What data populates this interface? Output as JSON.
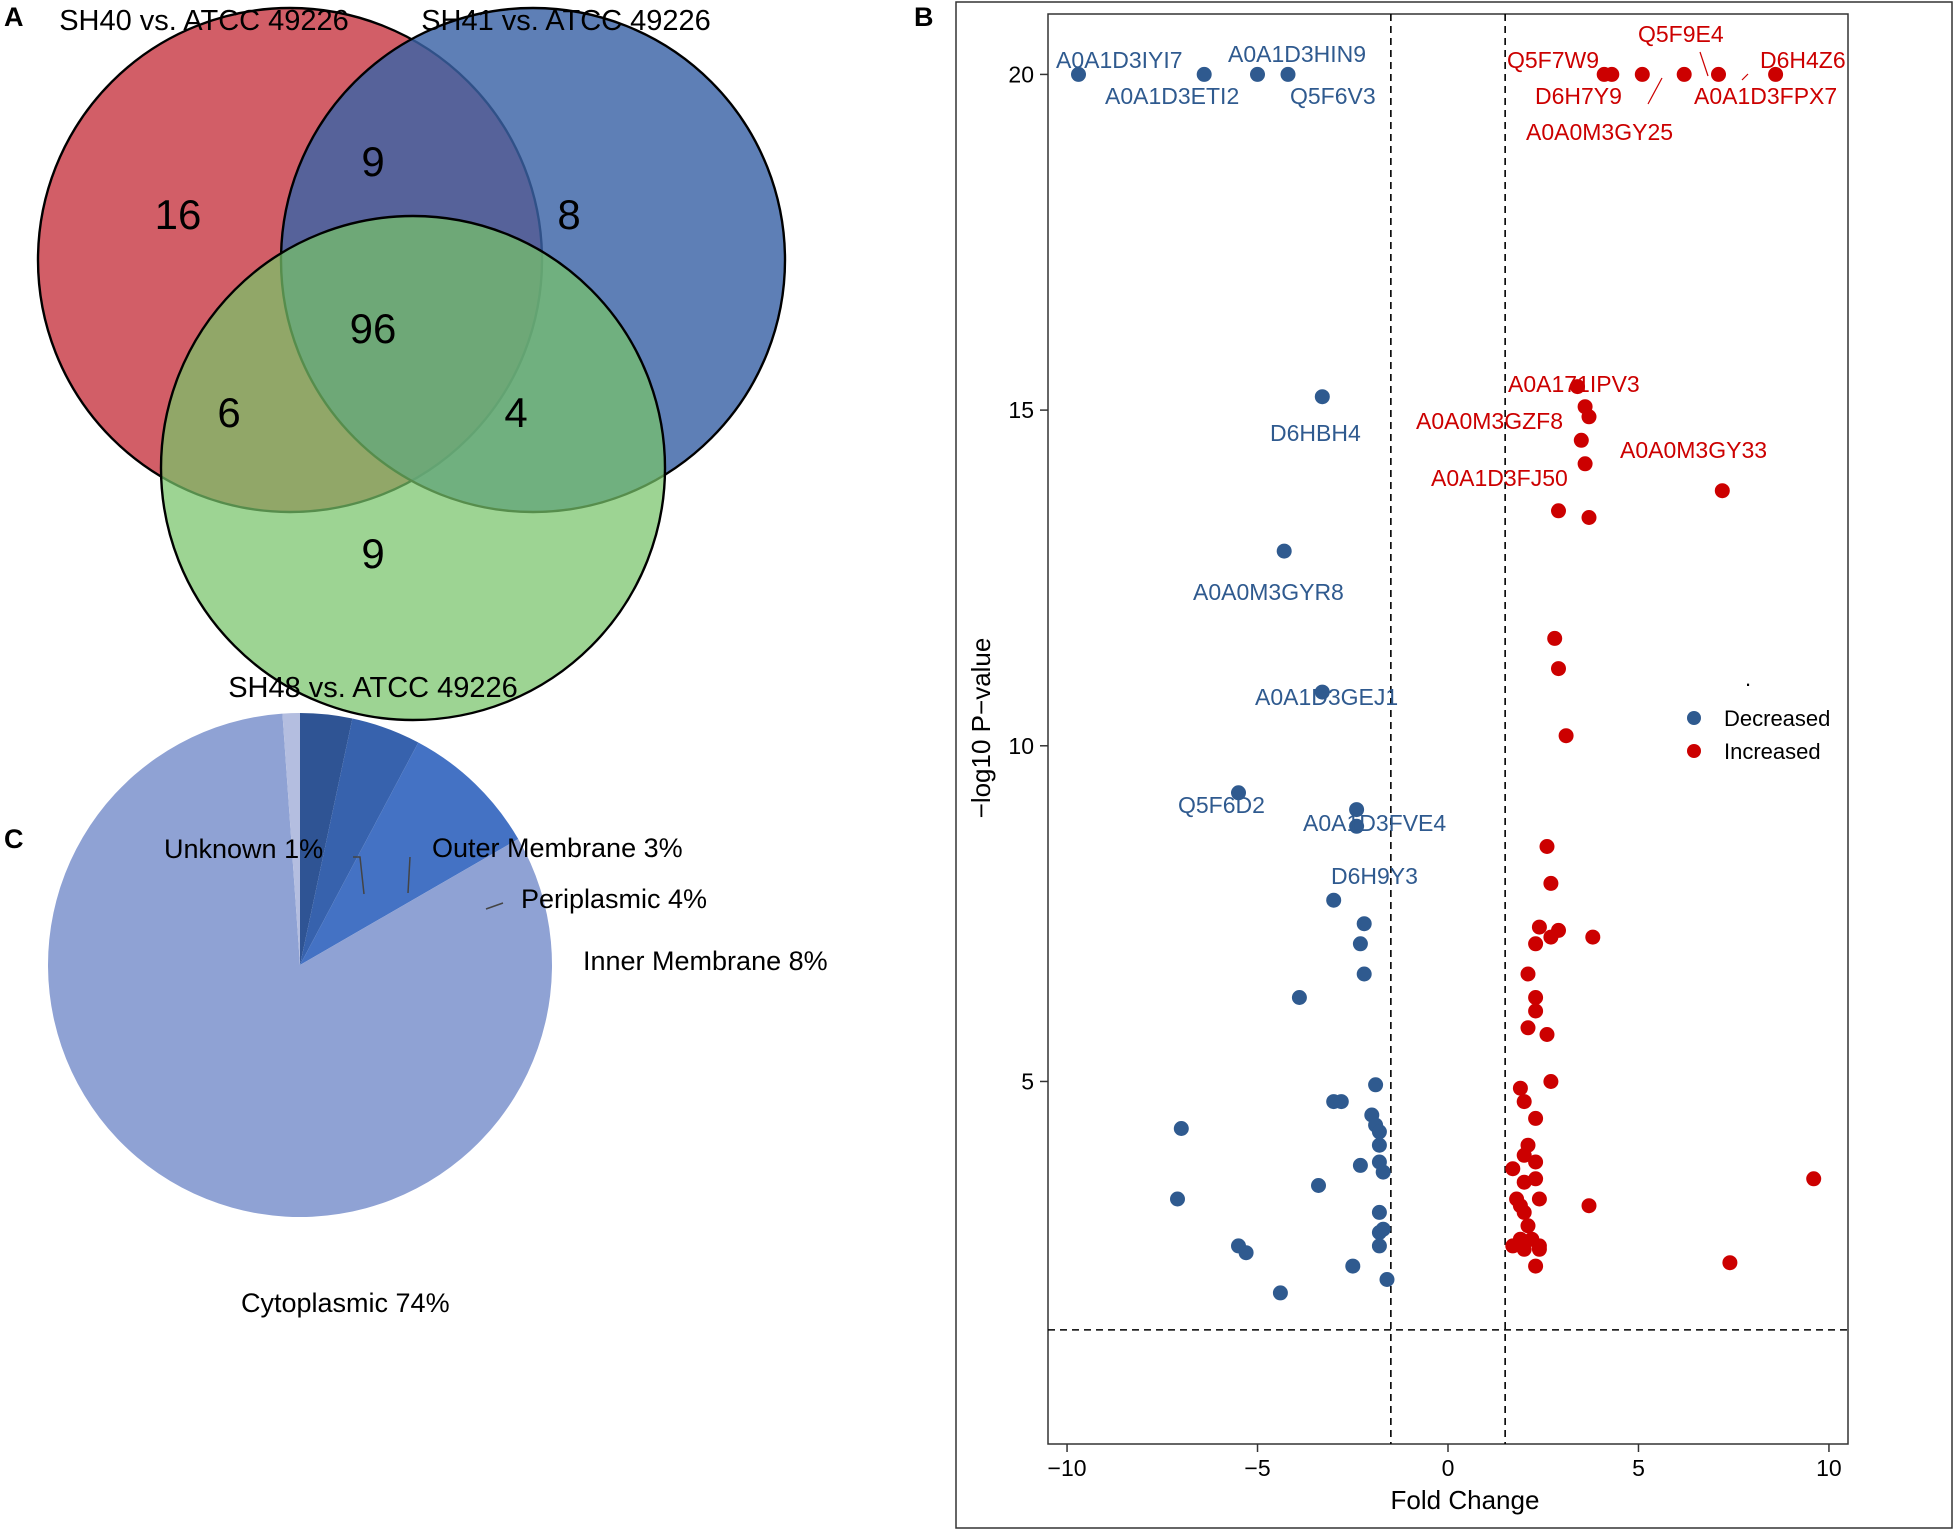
{
  "chart_data": [
    {
      "panel": "A",
      "type": "venn",
      "sets": [
        {
          "name": "SH40 vs. ATCC 49226",
          "color": "#c83a45"
        },
        {
          "name": "SH41 vs. ATCC 49226",
          "color": "#3a63a6"
        },
        {
          "name": "SH48 vs. ATCC 49226",
          "color": "#77c46a"
        }
      ],
      "regions": {
        "sh40_only": 16,
        "sh41_only": 8,
        "sh48_only": 9,
        "sh40_sh41": 9,
        "sh40_sh48": 6,
        "sh41_sh48": 4,
        "all_three": 96
      }
    },
    {
      "panel": "B",
      "type": "scatter",
      "title": "",
      "xlabel": "Fold Change",
      "ylabel": "−log10 P−value",
      "xlim": [
        -10.5,
        10.5
      ],
      "ylim": [
        -0.4,
        20.9
      ],
      "xticks": [
        -10,
        -5,
        0,
        5,
        10
      ],
      "xtick_labels": [
        "−10",
        "−5",
        "0",
        "5",
        "10"
      ],
      "yticks": [
        5,
        10,
        15,
        20
      ],
      "yticks_labels": [
        "5",
        "10",
        "15",
        "20"
      ],
      "thresholds": {
        "x": [
          -1.5,
          1.5
        ],
        "y": 1.3
      },
      "legend": {
        "position": "right-middle",
        "entries": [
          "Decreased",
          "Increased"
        ]
      },
      "stray_mark": ".",
      "series": [
        {
          "name": "Decreased",
          "color": "#2f5a8f",
          "points": [
            [
              -9.7,
              20.0
            ],
            [
              -6.4,
              20.0
            ],
            [
              -5.0,
              20.0
            ],
            [
              -4.2,
              20.0
            ],
            [
              -3.3,
              15.2
            ],
            [
              -4.3,
              12.9
            ],
            [
              -3.3,
              10.8
            ],
            [
              -5.5,
              9.3
            ],
            [
              -2.4,
              9.05
            ],
            [
              -2.4,
              8.8
            ],
            [
              -3.0,
              7.7
            ],
            [
              -2.2,
              7.35
            ],
            [
              -2.3,
              7.05
            ],
            [
              -2.2,
              6.6
            ],
            [
              -3.9,
              6.25
            ],
            [
              -1.9,
              4.95
            ],
            [
              -3.0,
              4.7
            ],
            [
              -2.8,
              4.7
            ],
            [
              -2.0,
              4.5
            ],
            [
              -1.9,
              4.35
            ],
            [
              -1.8,
              4.25
            ],
            [
              -1.8,
              4.05
            ],
            [
              -7.0,
              4.3
            ],
            [
              -1.8,
              3.8
            ],
            [
              -2.3,
              3.75
            ],
            [
              -1.7,
              3.65
            ],
            [
              -3.4,
              3.45
            ],
            [
              -7.1,
              3.25
            ],
            [
              -1.8,
              3.05
            ],
            [
              -1.8,
              2.75
            ],
            [
              -1.7,
              2.8
            ],
            [
              -1.8,
              2.55
            ],
            [
              -5.5,
              2.55
            ],
            [
              -5.3,
              2.45
            ],
            [
              -2.5,
              2.25
            ],
            [
              -1.6,
              2.05
            ],
            [
              -4.4,
              1.85
            ]
          ],
          "labels": [
            "A0A1D3IYI7",
            "A0A1D3HIN9",
            "A0A1D3ETI2",
            "Q5F6V3",
            "D6HBH4",
            "A0A0M3GYR8",
            "A0A1D3GEJ1",
            "Q5F6D2",
            "A0A1D3FVE4",
            "D6H9Y3"
          ]
        },
        {
          "name": "Increased",
          "color": "#cc0000",
          "points": [
            [
              4.1,
              20.0
            ],
            [
              4.3,
              20.0
            ],
            [
              5.1,
              20.0
            ],
            [
              6.2,
              20.0
            ],
            [
              7.1,
              20.0
            ],
            [
              8.6,
              20.0
            ],
            [
              3.4,
              15.35
            ],
            [
              3.6,
              15.05
            ],
            [
              3.7,
              14.9
            ],
            [
              3.5,
              14.55
            ],
            [
              3.6,
              14.2
            ],
            [
              7.2,
              13.8
            ],
            [
              2.9,
              13.5
            ],
            [
              3.7,
              13.4
            ],
            [
              2.8,
              11.6
            ],
            [
              2.9,
              11.15
            ],
            [
              3.1,
              10.15
            ],
            [
              2.6,
              8.5
            ],
            [
              2.7,
              7.95
            ],
            [
              2.4,
              7.3
            ],
            [
              2.9,
              7.25
            ],
            [
              2.7,
              7.15
            ],
            [
              2.3,
              7.05
            ],
            [
              3.8,
              7.15
            ],
            [
              2.1,
              6.6
            ],
            [
              2.3,
              6.25
            ],
            [
              2.3,
              6.05
            ],
            [
              2.1,
              5.8
            ],
            [
              2.6,
              5.7
            ],
            [
              2.7,
              5.0
            ],
            [
              1.9,
              4.9
            ],
            [
              2.0,
              4.7
            ],
            [
              2.3,
              4.45
            ],
            [
              2.1,
              4.05
            ],
            [
              2.0,
              3.9
            ],
            [
              2.3,
              3.8
            ],
            [
              1.7,
              3.7
            ],
            [
              2.0,
              3.5
            ],
            [
              2.3,
              3.55
            ],
            [
              9.6,
              3.55
            ],
            [
              1.8,
              3.25
            ],
            [
              1.9,
              3.15
            ],
            [
              2.4,
              3.25
            ],
            [
              2.0,
              3.05
            ],
            [
              3.7,
              3.15
            ],
            [
              2.1,
              2.85
            ],
            [
              1.9,
              2.65
            ],
            [
              2.2,
              2.65
            ],
            [
              2.4,
              2.55
            ],
            [
              1.7,
              2.55
            ],
            [
              2.0,
              2.5
            ],
            [
              2.4,
              2.5
            ],
            [
              2.3,
              2.25
            ],
            [
              7.4,
              2.3
            ]
          ],
          "labels": [
            "Q5F9E4",
            "Q5F7W9",
            "D6H4Z6",
            "D6H7Y9",
            "A0A1D3FPX7",
            "A0A0M3GY25",
            "A0A171IPV3",
            "A0A0M3GZF8",
            "A0A0M3GY33",
            "A0A1D3FJ50"
          ]
        }
      ]
    },
    {
      "panel": "C",
      "type": "pie",
      "slices": [
        {
          "label": "Unknown 1%",
          "value": 1,
          "color": "#b4bee0"
        },
        {
          "label": "Outer Membrane 3%",
          "value": 3,
          "color": "#2f5494"
        },
        {
          "label": "Periplasmic 4%",
          "value": 4,
          "color": "#3762ad"
        },
        {
          "label": "Inner Membrane 8%",
          "value": 8,
          "color": "#4472c4"
        },
        {
          "label": "Cytoplasmic 74%",
          "value": 74,
          "color": "#8fa2d4"
        }
      ]
    }
  ]
}
